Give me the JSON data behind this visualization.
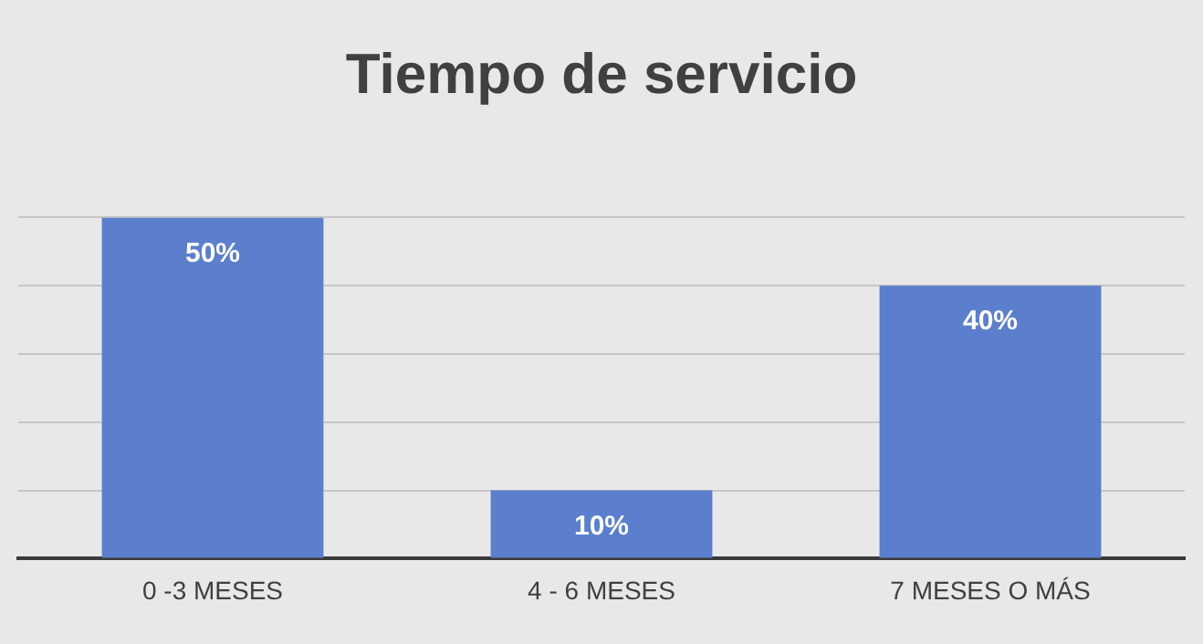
{
  "chart_data": {
    "type": "bar",
    "title": "Tiempo de servicio",
    "categories": [
      "0 -3 MESES",
      "4 - 6 MESES",
      "7 MESES O MÁS"
    ],
    "values": [
      50,
      10,
      40
    ],
    "color": "#5b7fcc",
    "value_labels": [
      "50%",
      "10%",
      "40%"
    ],
    "ylim": [
      0,
      50
    ],
    "yticks": [
      {
        "value": 0,
        "label": null
      },
      {
        "value": 10,
        "label": null
      },
      {
        "value": 20,
        "label": null
      },
      {
        "value": 30,
        "label": null
      },
      {
        "value": 40,
        "label": null
      },
      {
        "value": 50,
        "label": null
      }
    ],
    "grid": "y",
    "tick_labels": "x"
  }
}
